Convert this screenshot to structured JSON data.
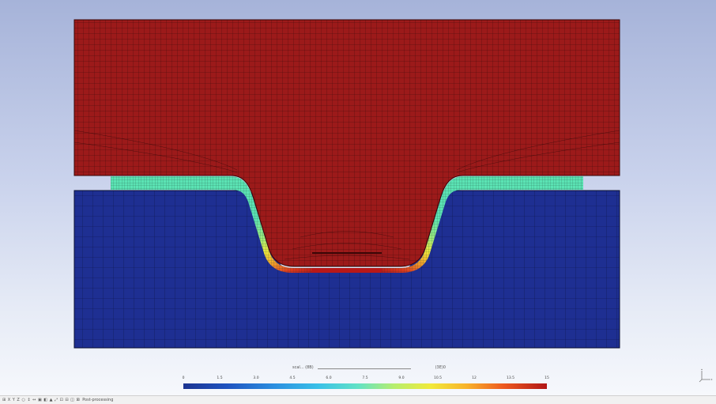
{
  "viewport": {
    "upper_block_color": "#9c1a1a",
    "lower_block_color": "#1e2f92",
    "mesh_line_color": "#2a0808",
    "sheet_colors": [
      "#5be3b4",
      "#9fea7a",
      "#f0e53a",
      "#f19a2a",
      "#de3b1e",
      "#b81818"
    ]
  },
  "legend": {
    "title_left": "scal... (8B)",
    "title_mid": "",
    "title_right": "(3E)0",
    "ticks": [
      "0",
      "1.5",
      "3.0",
      "4.5",
      "6.0",
      "7.5",
      "9.0",
      "10.5",
      "12",
      "13.5",
      "15"
    ],
    "colors": [
      "#1c3491",
      "#2c8fe0",
      "#62e2c6",
      "#f1ea3a",
      "#ee5a1f",
      "#b11616"
    ]
  },
  "statusbar": {
    "toolbar_glyphs": "⊞ X Y Z ○ ↕ ↔ ▣ ◧ ▲ ⤢ ⊡ ⊟ ◫ ⊠",
    "mode_label": "Post-processing"
  },
  "icons": {
    "axis": "axis-triad-icon"
  }
}
